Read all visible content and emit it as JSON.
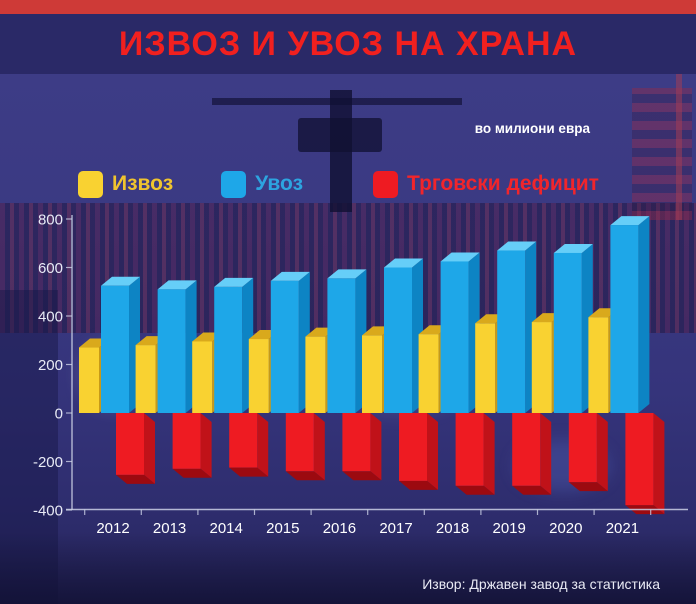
{
  "title": "ИЗВОЗ И УВОЗ НА ХРАНА",
  "units_label": "во милиони евра",
  "source": "Извор: Државен завод за статистика",
  "legend": [
    {
      "label": "Извоз",
      "color": "#f9d231",
      "text_color": "#f0c42e"
    },
    {
      "label": "Увоз",
      "color": "#1ea7e8",
      "text_color": "#2da4e0"
    },
    {
      "label": "Трговски дефицит",
      "color": "#ee1b22",
      "text_color": "#f1252b"
    }
  ],
  "chart_data": {
    "type": "bar",
    "style": "3d-grouped",
    "title": "ИЗВОЗ И УВОЗ НА ХРАНА",
    "units": "во милиони евра",
    "source": "Извор: Државен завод за статистика",
    "categories": [
      "2012",
      "2013",
      "2014",
      "2015",
      "2016",
      "2017",
      "2018",
      "2019",
      "2020",
      "2021"
    ],
    "series": [
      {
        "name": "Извоз",
        "color": "#f9d231",
        "values": [
          270,
          280,
          295,
          305,
          315,
          320,
          325,
          370,
          375,
          395
        ]
      },
      {
        "name": "Увоз",
        "color": "#1ea7e8",
        "values": [
          525,
          510,
          520,
          545,
          555,
          600,
          625,
          670,
          660,
          775
        ]
      },
      {
        "name": "Трговски дефицит",
        "color": "#ee1b22",
        "values": [
          -255,
          -230,
          -225,
          -240,
          -240,
          -280,
          -300,
          -300,
          -285,
          -380
        ]
      }
    ],
    "xlabel": "",
    "ylabel": "",
    "ylim": [
      -400,
      800
    ],
    "y_ticks": [
      800,
      600,
      400,
      200,
      0,
      -200,
      -400
    ],
    "grid": false,
    "legend_position": "top-left"
  }
}
